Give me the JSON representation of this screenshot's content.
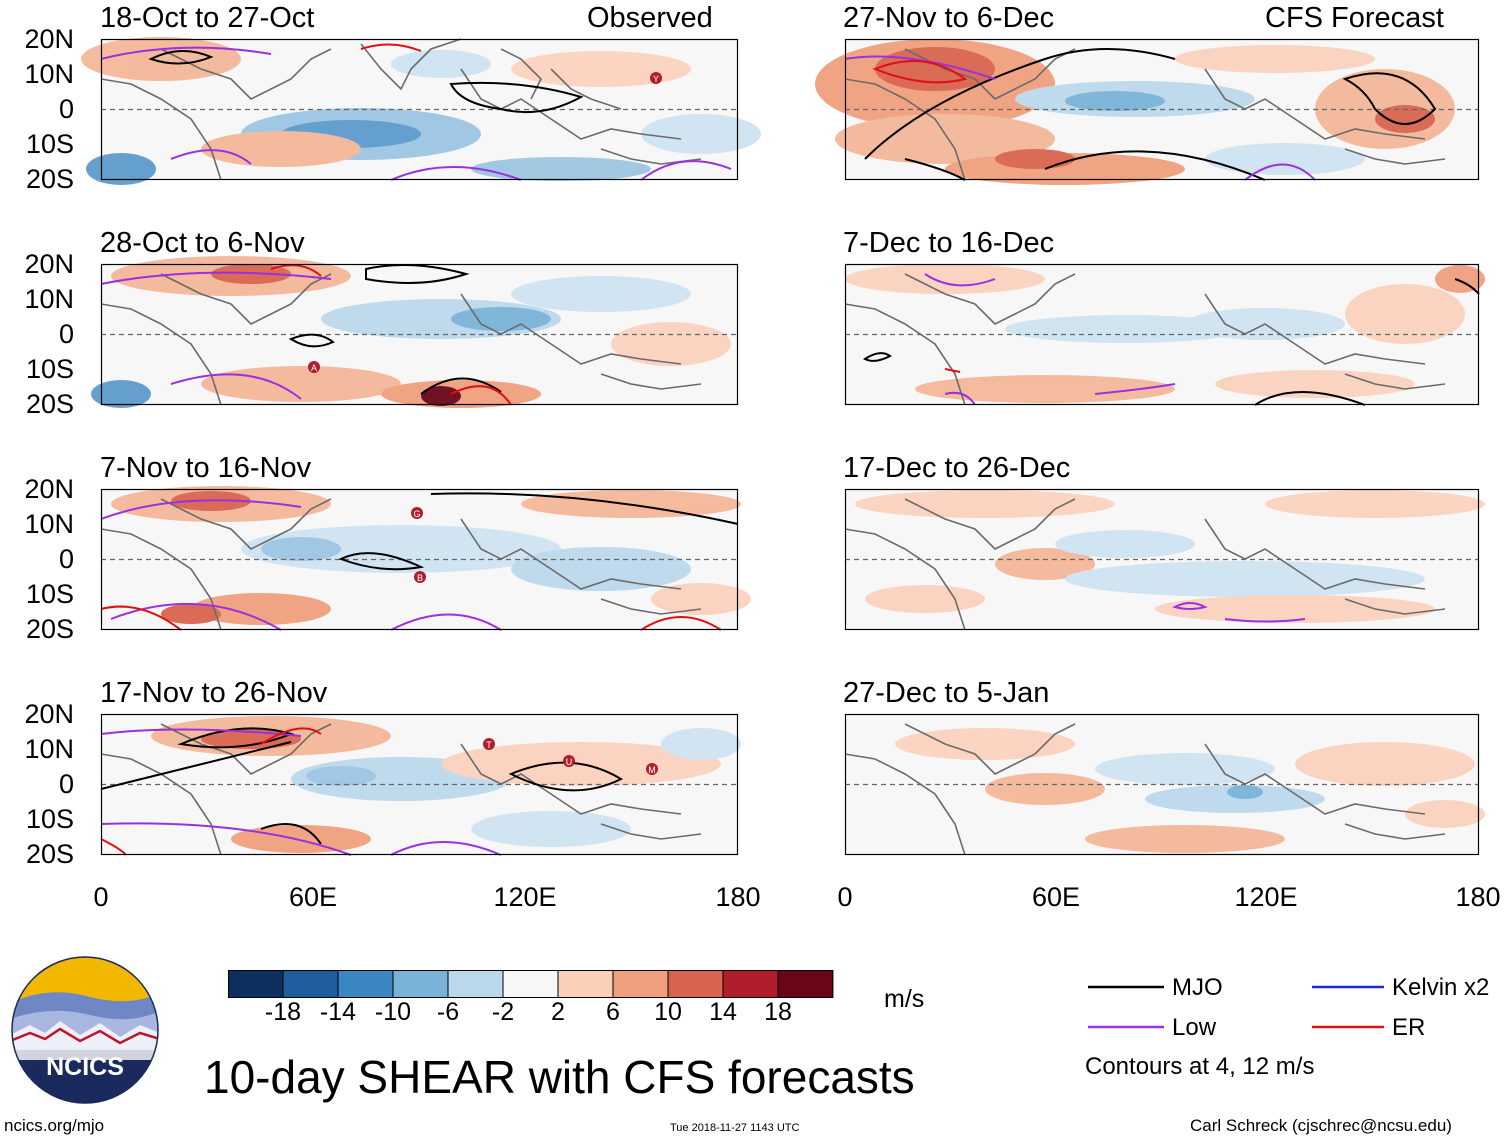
{
  "header": {
    "observed_label": "Observed",
    "forecast_label": "CFS Forecast"
  },
  "axes": {
    "y_ticks": [
      "20N",
      "10N",
      "0",
      "10S",
      "20S"
    ],
    "x_ticks": [
      "0",
      "60E",
      "120E",
      "180"
    ]
  },
  "panels_left": [
    {
      "period": "18-Oct to 27-Oct"
    },
    {
      "period": "28-Oct to 6-Nov"
    },
    {
      "period": "7-Nov to 16-Nov"
    },
    {
      "period": "17-Nov to 26-Nov"
    }
  ],
  "panels_right": [
    {
      "period": "27-Nov to 6-Dec"
    },
    {
      "period": "7-Dec to 16-Dec"
    },
    {
      "period": "17-Dec to 26-Dec"
    },
    {
      "period": "27-Dec to 5-Jan"
    }
  ],
  "storm_markers": {
    "p0": [
      "Y"
    ],
    "p1": [
      "A"
    ],
    "p2": [
      "G",
      "B"
    ],
    "p3": [
      "T",
      "U",
      "M"
    ]
  },
  "colorbar": {
    "unit": "m/s",
    "labels": [
      "-18",
      "-14",
      "-10",
      "-6",
      "-2",
      "2",
      "6",
      "10",
      "14",
      "18"
    ],
    "colors": [
      "#0d2f5e",
      "#1f5fa0",
      "#3a86c0",
      "#7ab3d8",
      "#bcd9ec",
      "#f7f7f7",
      "#fbcfb8",
      "#f0a07e",
      "#d8644f",
      "#b01e2c",
      "#6a0618"
    ]
  },
  "legend": {
    "items": [
      {
        "label": "MJO",
        "color": "#000000"
      },
      {
        "label": "Kelvin x2",
        "color": "#1e2ad8"
      },
      {
        "label": "Low",
        "color": "#9b30e0"
      },
      {
        "label": "ER",
        "color": "#e01010"
      }
    ],
    "note": "Contours at 4, 12 m/s"
  },
  "footer": {
    "title": "10-day SHEAR with CFS forecasts",
    "logo_text": "NCICS",
    "url": "ncics.org/mjo",
    "timestamp": "Tue 2018-11-27 1143 UTC",
    "credit": "Carl Schreck (cjschrec@ncsu.edu)"
  }
}
